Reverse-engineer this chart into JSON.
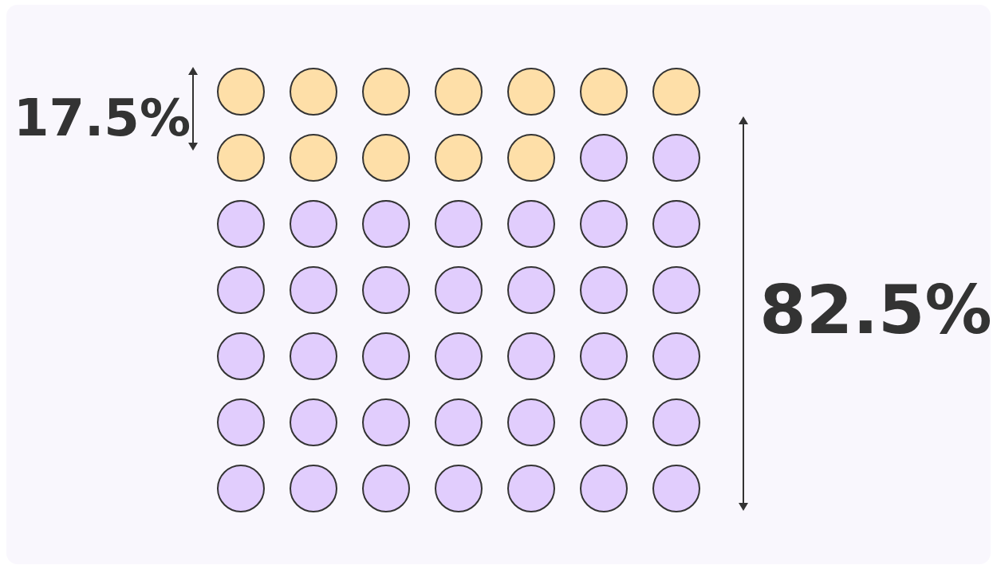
{
  "chart_data": {
    "type": "other",
    "categories": [
      null,
      null
    ],
    "values": [
      17.5,
      82.5
    ],
    "colors": [
      "#fedfa8",
      "#e1cdfd"
    ],
    "value_labels": [
      "17.5%",
      "82.5%"
    ]
  }
}
